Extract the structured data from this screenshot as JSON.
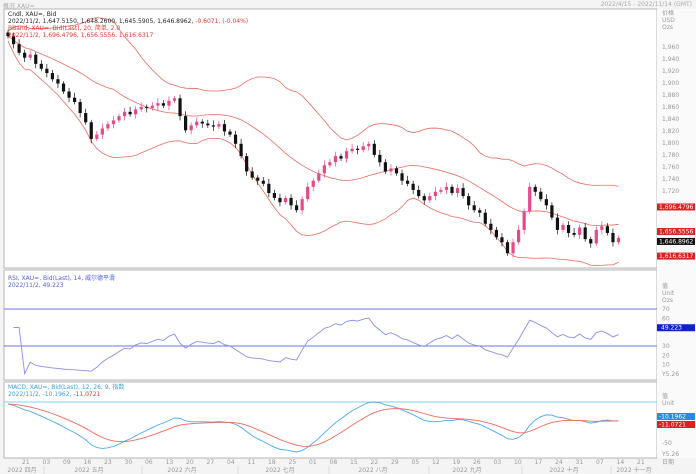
{
  "window": {
    "title": "概况 XAU=",
    "range": "2022/4/15 - 2022/11/14 (GMT)"
  },
  "main": {
    "legend": {
      "line1": "Cndl, XAU=, Bid",
      "ohlc": "2022/11/2, 1,647.5150, 1,648.2600, 1,645.5905, 1,646.8962,",
      "change": "-0.6071, (-0.04%)",
      "bband": "BBand, XAU=, Bid(Last), 20, 简单, 2.0",
      "bband_values": "2022/11/2, 1,696.4796, 1,656.5556, 1,616.6317"
    },
    "axis_header": [
      "价格",
      "USD",
      "Ozs"
    ],
    "axis_ticks": [
      "1,960",
      "1,940",
      "1,920",
      "1,900",
      "1,880",
      "1,860",
      "1,840",
      "1,820",
      "1,800",
      "1,780",
      "1,760",
      "1,740",
      "1,720"
    ],
    "badges": {
      "upper": "1,696.4796",
      "mid": "1,656.5556",
      "last": "1,646.8962",
      "lower": "1,616.6317"
    },
    "colors": {
      "up": "#e8488a",
      "down": "#111111",
      "band": "#ec6a5e"
    }
  },
  "rsi": {
    "legend": "RSI, XAU=, Bid(Last), 14, 威尔德平滑",
    "value_line": "2022/11/2, 49.223",
    "axis_header": [
      "值",
      "Unit",
      "Ozs"
    ],
    "ticks": [
      "70",
      "60",
      "30",
      "20",
      "10"
    ],
    "badge": "49.223",
    "unit": "Y5.26"
  },
  "macd": {
    "legend": "MACD, XAU=, Bid(Last), 12, 26, 9, 指数",
    "value_line": "2022/11/2, -10.1962,",
    "signal": "-11.0721",
    "axis_header": [
      "值",
      "Unit"
    ],
    "ticks": [
      "-50"
    ],
    "badge_macd": "-10.1962",
    "badge_signal": "-11.0721",
    "unit": "Y5.26"
  },
  "xaxis": {
    "label": "日期",
    "days": [
      "21",
      "03",
      "09",
      "16",
      "23",
      "30",
      "06",
      "13",
      "20",
      "27",
      "04",
      "11",
      "18",
      "25",
      "01",
      "08",
      "15",
      "22",
      "29",
      "05",
      "12",
      "19",
      "26",
      "03",
      "10",
      "17",
      "24",
      "31",
      "07",
      "14",
      "21"
    ],
    "months": [
      "2022 四月",
      "2022 五月",
      "2022 六月",
      "2022 七月",
      "2022 八月",
      "2022 九月",
      "2022 十月",
      "2022 十一月"
    ]
  },
  "chart_data": {
    "type": "candlestick",
    "closes": [
      1975,
      1962,
      1948,
      1940,
      1945,
      1930,
      1922,
      1915,
      1905,
      1898,
      1885,
      1875,
      1868,
      1850,
      1835,
      1808,
      1815,
      1825,
      1832,
      1838,
      1845,
      1852,
      1848,
      1856,
      1860,
      1858,
      1862,
      1866,
      1862,
      1870,
      1874,
      1845,
      1822,
      1830,
      1836,
      1833,
      1830,
      1828,
      1832,
      1820,
      1815,
      1800,
      1780,
      1755,
      1745,
      1740,
      1735,
      1720,
      1712,
      1705,
      1712,
      1700,
      1692,
      1710,
      1730,
      1740,
      1752,
      1765,
      1770,
      1780,
      1776,
      1788,
      1792,
      1790,
      1796,
      1800,
      1782,
      1770,
      1755,
      1760,
      1752,
      1740,
      1735,
      1725,
      1715,
      1708,
      1715,
      1722,
      1725,
      1730,
      1720,
      1728,
      1715,
      1700,
      1692,
      1688,
      1670,
      1660,
      1648,
      1640,
      1622,
      1640,
      1660,
      1690,
      1730,
      1722,
      1710,
      1700,
      1680,
      1660,
      1668,
      1655,
      1652,
      1664,
      1645,
      1638,
      1660,
      1666,
      1655,
      1640,
      1647
    ]
  }
}
